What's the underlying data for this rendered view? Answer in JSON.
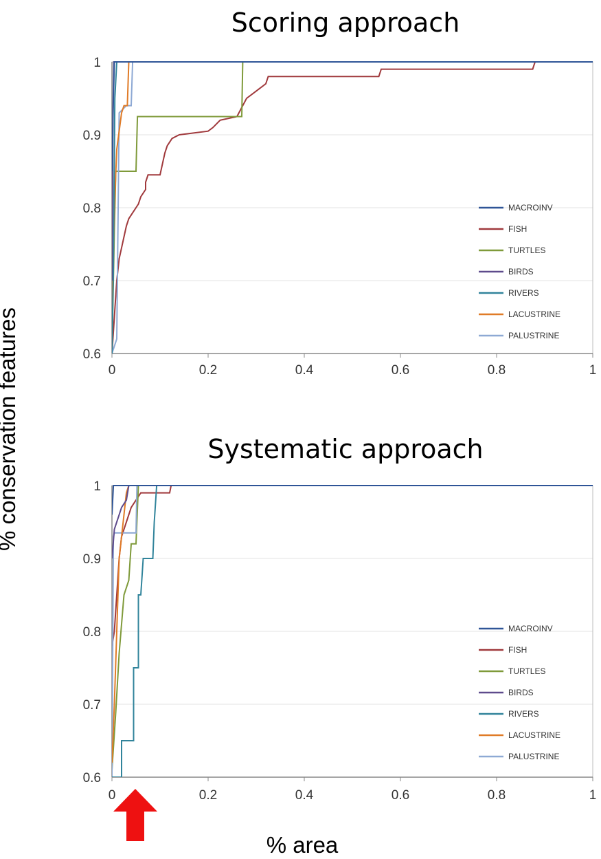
{
  "ylabel": "% conservation features",
  "xlabel": "% area",
  "series_meta": [
    {
      "name": "MACROINV",
      "color": "#2f5597"
    },
    {
      "name": "FISH",
      "color": "#a0393c"
    },
    {
      "name": "TURTLES",
      "color": "#7f9a3a"
    },
    {
      "name": "BIRDS",
      "color": "#5e4b8c"
    },
    {
      "name": "RIVERS",
      "color": "#31849b"
    },
    {
      "name": "LACUSTRINE",
      "color": "#e07b27"
    },
    {
      "name": "PALUSTRINE",
      "color": "#8ea9d4"
    }
  ],
  "chart_data": [
    {
      "type": "line",
      "title": "Scoring approach",
      "xlim": [
        0,
        1
      ],
      "ylim": [
        0.6,
        1
      ],
      "xticks": [
        "0",
        "0.2",
        "0.4",
        "0.6",
        "0.8",
        "1"
      ],
      "yticks": [
        "0.6",
        "0.7",
        "0.8",
        "0.9",
        "1"
      ],
      "grid": "horizontal",
      "legend_position": "right",
      "series": [
        {
          "name": "MACROINV",
          "points": [
            [
              0,
              0.85
            ],
            [
              0.003,
              0.95
            ],
            [
              0.005,
              1
            ],
            [
              1,
              1
            ]
          ]
        },
        {
          "name": "FISH",
          "points": [
            [
              0,
              0.6
            ],
            [
              0.005,
              0.65
            ],
            [
              0.01,
              0.7
            ],
            [
              0.015,
              0.73
            ],
            [
              0.02,
              0.745
            ],
            [
              0.025,
              0.76
            ],
            [
              0.03,
              0.775
            ],
            [
              0.035,
              0.785
            ],
            [
              0.045,
              0.795
            ],
            [
              0.05,
              0.8
            ],
            [
              0.055,
              0.805
            ],
            [
              0.06,
              0.815
            ],
            [
              0.07,
              0.825
            ],
            [
              0.07,
              0.835
            ],
            [
              0.075,
              0.845
            ],
            [
              0.1,
              0.845
            ],
            [
              0.105,
              0.86
            ],
            [
              0.11,
              0.875
            ],
            [
              0.115,
              0.885
            ],
            [
              0.125,
              0.895
            ],
            [
              0.14,
              0.9
            ],
            [
              0.2,
              0.905
            ],
            [
              0.21,
              0.91
            ],
            [
              0.225,
              0.92
            ],
            [
              0.26,
              0.925
            ],
            [
              0.28,
              0.95
            ],
            [
              0.3,
              0.96
            ],
            [
              0.32,
              0.97
            ],
            [
              0.325,
              0.98
            ],
            [
              0.555,
              0.98
            ],
            [
              0.56,
              0.99
            ],
            [
              0.875,
              0.99
            ],
            [
              0.88,
              1
            ],
            [
              1,
              1
            ]
          ]
        },
        {
          "name": "TURTLES",
          "points": [
            [
              0,
              0.6
            ],
            [
              0.005,
              0.77
            ],
            [
              0.008,
              0.85
            ],
            [
              0.05,
              0.85
            ],
            [
              0.053,
              0.925
            ],
            [
              0.27,
              0.925
            ],
            [
              0.272,
              1
            ],
            [
              1,
              1
            ]
          ]
        },
        {
          "name": "BIRDS",
          "points": [
            [
              0,
              0.7
            ],
            [
              0.002,
              0.93
            ],
            [
              0.004,
              1
            ],
            [
              1,
              1
            ]
          ]
        },
        {
          "name": "RIVERS",
          "points": [
            [
              0,
              0.6
            ],
            [
              0.003,
              0.72
            ],
            [
              0.006,
              0.95
            ],
            [
              0.01,
              1
            ],
            [
              1,
              1
            ]
          ]
        },
        {
          "name": "LACUSTRINE",
          "points": [
            [
              0,
              0.65
            ],
            [
              0.005,
              0.8
            ],
            [
              0.01,
              0.88
            ],
            [
              0.02,
              0.93
            ],
            [
              0.025,
              0.94
            ],
            [
              0.032,
              0.94
            ],
            [
              0.035,
              1
            ],
            [
              1,
              1
            ]
          ]
        },
        {
          "name": "PALUSTRINE",
          "points": [
            [
              0,
              0.6
            ],
            [
              0.01,
              0.62
            ],
            [
              0.015,
              0.93
            ],
            [
              0.03,
              0.94
            ],
            [
              0.04,
              0.94
            ],
            [
              0.043,
              1
            ],
            [
              1,
              1
            ]
          ]
        }
      ]
    },
    {
      "type": "line",
      "title": "Systematic approach",
      "xlim": [
        0,
        1
      ],
      "ylim": [
        0.6,
        1
      ],
      "xticks": [
        "0",
        "0.2",
        "0.4",
        "0.6",
        "0.8",
        "1"
      ],
      "yticks": [
        "0.6",
        "0.7",
        "0.8",
        "0.9",
        "1"
      ],
      "grid": "horizontal",
      "legend_position": "right",
      "series": [
        {
          "name": "MACROINV",
          "points": [
            [
              0,
              0.96
            ],
            [
              0.003,
              1
            ],
            [
              1,
              1
            ]
          ]
        },
        {
          "name": "FISH",
          "points": [
            [
              0,
              0.78
            ],
            [
              0.005,
              0.8
            ],
            [
              0.01,
              0.85
            ],
            [
              0.015,
              0.9
            ],
            [
              0.02,
              0.93
            ],
            [
              0.03,
              0.95
            ],
            [
              0.04,
              0.97
            ],
            [
              0.05,
              0.98
            ],
            [
              0.06,
              0.99
            ],
            [
              0.12,
              0.99
            ],
            [
              0.123,
              1
            ],
            [
              1,
              1
            ]
          ]
        },
        {
          "name": "TURTLES",
          "points": [
            [
              0,
              0.61
            ],
            [
              0.008,
              0.69
            ],
            [
              0.015,
              0.77
            ],
            [
              0.025,
              0.85
            ],
            [
              0.035,
              0.87
            ],
            [
              0.04,
              0.92
            ],
            [
              0.05,
              0.92
            ],
            [
              0.055,
              1
            ],
            [
              1,
              1
            ]
          ]
        },
        {
          "name": "BIRDS",
          "points": [
            [
              0,
              0.9
            ],
            [
              0.005,
              0.94
            ],
            [
              0.01,
              0.95
            ],
            [
              0.015,
              0.96
            ],
            [
              0.02,
              0.97
            ],
            [
              0.03,
              0.98
            ],
            [
              0.035,
              1
            ],
            [
              1,
              1
            ]
          ]
        },
        {
          "name": "RIVERS",
          "points": [
            [
              0,
              0.6
            ],
            [
              0.02,
              0.6
            ],
            [
              0.02,
              0.65
            ],
            [
              0.045,
              0.65
            ],
            [
              0.045,
              0.75
            ],
            [
              0.055,
              0.75
            ],
            [
              0.055,
              0.85
            ],
            [
              0.06,
              0.85
            ],
            [
              0.065,
              0.9
            ],
            [
              0.085,
              0.9
            ],
            [
              0.088,
              0.95
            ],
            [
              0.09,
              0.97
            ],
            [
              0.093,
              1
            ],
            [
              1,
              1
            ]
          ]
        },
        {
          "name": "LACUSTRINE",
          "points": [
            [
              0,
              0.62
            ],
            [
              0.005,
              0.7
            ],
            [
              0.01,
              0.8
            ],
            [
              0.015,
              0.9
            ],
            [
              0.02,
              0.93
            ],
            [
              0.025,
              0.96
            ],
            [
              0.03,
              0.99
            ],
            [
              0.035,
              1
            ],
            [
              1,
              1
            ]
          ]
        },
        {
          "name": "PALUSTRINE",
          "points": [
            [
              0,
              0.6
            ],
            [
              0.003,
              0.93
            ],
            [
              0.005,
              0.935
            ],
            [
              0.05,
              0.935
            ],
            [
              0.052,
              1
            ],
            [
              1,
              1
            ]
          ]
        }
      ]
    }
  ]
}
